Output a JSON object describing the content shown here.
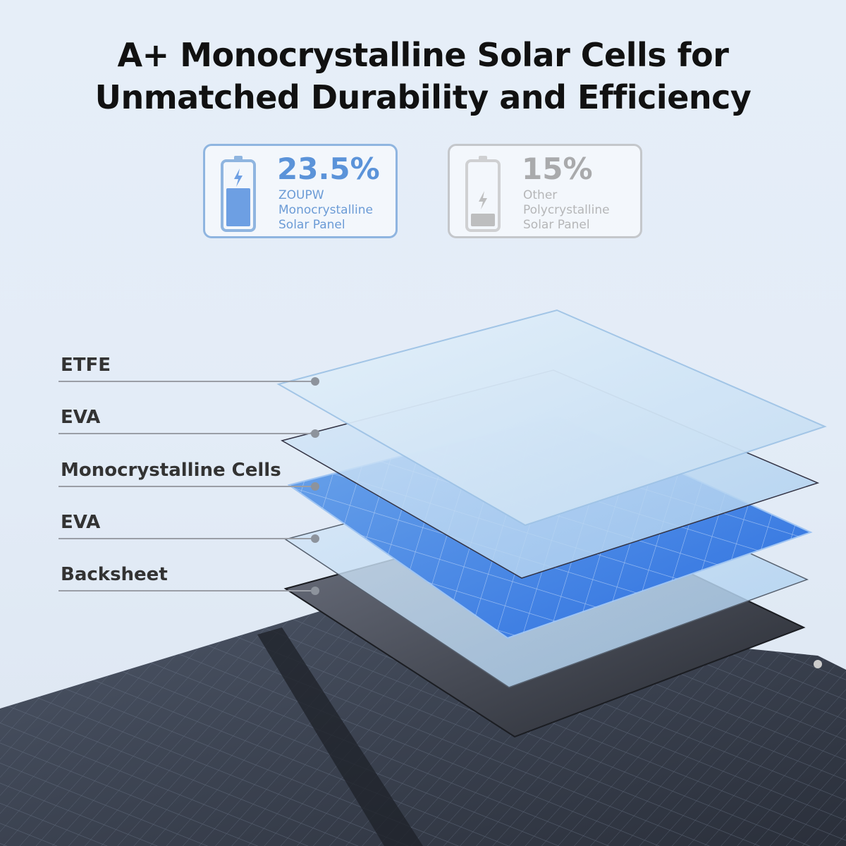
{
  "title_line1": "A+ Monocrystalline Solar Cells for",
  "title_line2": "Unmatched Durability and Efficiency",
  "comparison": [
    {
      "value": "23.5%",
      "line1": "ZOUPW",
      "line2": "Monocrystalline",
      "line3": "Solar Panel",
      "battery_fill": 0.6,
      "color": "#5b93d9"
    },
    {
      "value": "15%",
      "line1": "Other",
      "line2": "Polycrystalline",
      "line3": "Solar Panel",
      "battery_fill": 0.2,
      "color": "#a9aaac"
    }
  ],
  "layers": [
    "ETFE",
    "EVA",
    "Monocrystalline Cells",
    "EVA",
    "Backsheet"
  ]
}
